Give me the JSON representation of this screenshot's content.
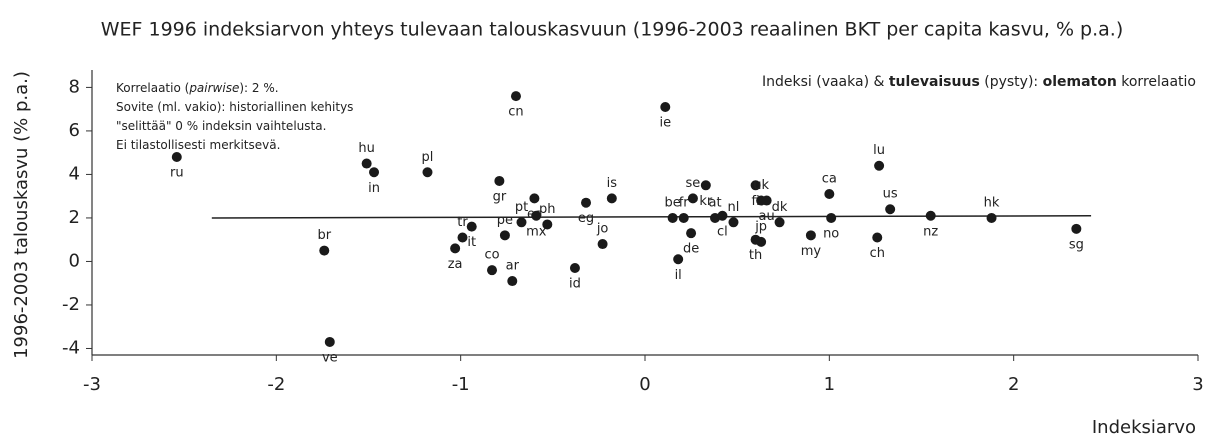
{
  "chart_data": {
    "type": "scatter",
    "title": "WEF 1996 indeksiarvon yhteys tulevaan talouskasvuun (1996-2003 reaalinen BKT per capita kasvu, % p.a.)",
    "x_label": "Indeksiarvo",
    "y_label": "1996-2003 talouskasvu (% p.a.)",
    "annotation_left": [
      [
        "Korrelaatio (",
        "pairwise",
        "): 2 %."
      ],
      [
        "Sovite (ml. vakio): historiallinen kehitys"
      ],
      [
        "\"selittää\" 0 % indeksin vaihtelusta."
      ],
      [
        "Ei tilastollisesti merkitsevä."
      ]
    ],
    "annotation_right": [
      "Indeksi (vaaka) & ",
      "tulevaisuus",
      " (pysty): ",
      "olematon",
      " korrelaatio"
    ],
    "color": "#1a1a1a",
    "labels": [
      "ru",
      "br",
      "ve",
      "hu",
      "in",
      "pl",
      "za",
      "tr",
      "it",
      "co",
      "gr",
      "pe",
      "cn",
      "ar",
      "es",
      "pt",
      "mx",
      "ph",
      "eg",
      "is",
      "id",
      "jo",
      "ie",
      "be",
      "il",
      "fr",
      "de",
      "se",
      "kr",
      "at",
      "cl",
      "nl",
      "th",
      "jp",
      "fi",
      "uk",
      "au",
      "dk",
      "my",
      "ca",
      "no",
      "lu",
      "ch",
      "us",
      "nz",
      "hk",
      "sg"
    ],
    "x": [
      -2.54,
      -1.74,
      -1.71,
      -1.51,
      -1.47,
      -1.18,
      -1.03,
      -0.99,
      -0.94,
      -0.83,
      -0.79,
      -0.76,
      -0.7,
      -0.72,
      -0.6,
      -0.67,
      -0.59,
      -0.53,
      -0.32,
      -0.18,
      -0.38,
      -0.23,
      0.11,
      0.15,
      0.18,
      0.21,
      0.25,
      0.26,
      0.33,
      0.38,
      0.42,
      0.48,
      0.6,
      0.63,
      0.6,
      0.63,
      0.66,
      0.73,
      0.9,
      1.0,
      1.01,
      1.27,
      1.26,
      1.33,
      1.55,
      1.88,
      2.34
    ],
    "values": [
      4.8,
      0.5,
      -3.7,
      4.5,
      4.1,
      4.1,
      0.6,
      1.1,
      1.6,
      -0.4,
      3.7,
      1.2,
      7.6,
      -0.9,
      2.9,
      1.8,
      2.1,
      1.7,
      2.7,
      2.9,
      -0.3,
      0.8,
      7.1,
      2.0,
      0.1,
      2.0,
      1.3,
      2.9,
      3.5,
      2.0,
      2.1,
      1.8,
      1.0,
      0.9,
      3.5,
      2.8,
      2.8,
      1.8,
      1.2,
      3.1,
      2.0,
      4.4,
      1.1,
      2.4,
      2.1,
      2.0,
      1.5
    ],
    "trend": {
      "x": [
        -2.35,
        2.42
      ],
      "values": [
        2.0,
        2.1
      ]
    },
    "xlim": [
      -3,
      3
    ],
    "xticks": [
      -3,
      -2,
      -1,
      0,
      1,
      2,
      3
    ],
    "ylim": [
      -4.3,
      8.8
    ],
    "yticks": [
      -4,
      -2,
      0,
      2,
      4,
      6,
      8
    ]
  }
}
